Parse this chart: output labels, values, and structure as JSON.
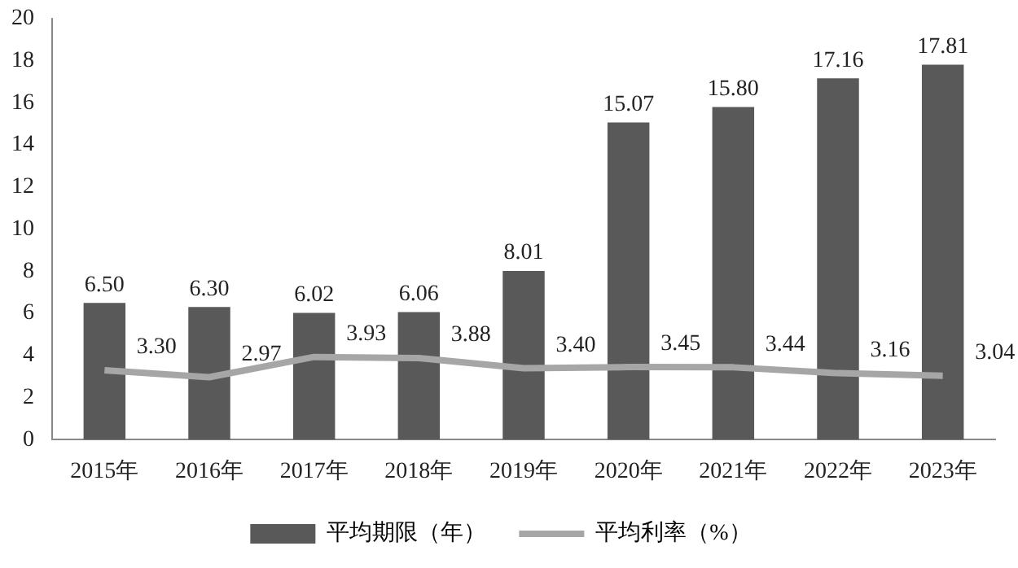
{
  "chart_data": {
    "type": "bar",
    "categories": [
      "2015年",
      "2016年",
      "2017年",
      "2018年",
      "2019年",
      "2020年",
      "2021年",
      "2022年",
      "2023年"
    ],
    "series": [
      {
        "name": "平均期限（年）",
        "color": "#595959",
        "values": [
          6.5,
          6.3,
          6.02,
          6.06,
          8.01,
          15.07,
          15.8,
          17.16,
          17.81
        ],
        "value_labels": [
          "6.50",
          "6.30",
          "6.02",
          "6.06",
          "8.01",
          "15.07",
          "15.80",
          "17.16",
          "17.81"
        ]
      },
      {
        "name": "平均利率（%）",
        "type": "line",
        "color": "#a6a6a6",
        "values": [
          3.3,
          2.97,
          3.93,
          3.88,
          3.4,
          3.45,
          3.44,
          3.16,
          3.04
        ],
        "value_labels": [
          "3.30",
          "2.97",
          "3.93",
          "3.88",
          "3.40",
          "3.45",
          "3.44",
          "3.16",
          "3.04"
        ]
      }
    ],
    "ylim": [
      0,
      20
    ],
    "yticks": [
      0,
      2,
      4,
      6,
      8,
      10,
      12,
      14,
      16,
      18,
      20
    ],
    "grid": false,
    "legend": "bottom",
    "marker": "none"
  }
}
